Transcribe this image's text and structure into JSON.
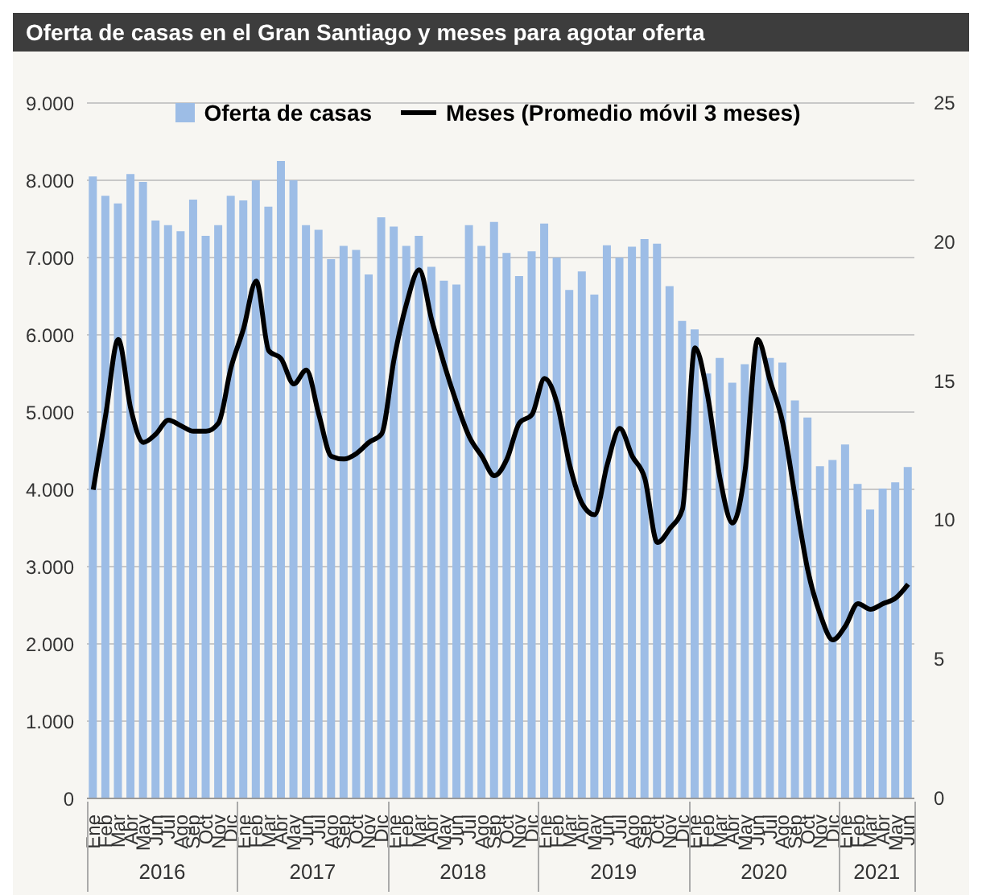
{
  "chart_data": {
    "type": "bar",
    "title": "Oferta de casas en el Gran Santiago y meses para agotar oferta",
    "categories": [
      "Ene",
      "Feb",
      "Mar",
      "Abr",
      "May",
      "Jun",
      "Jul",
      "Ago",
      "Sep",
      "Oct",
      "Nov",
      "Dic",
      "Ene",
      "Feb",
      "Mar",
      "Abr",
      "May",
      "Jun",
      "Jul",
      "Ago",
      "Sep",
      "Oct",
      "Nov",
      "Dic",
      "Ene",
      "Feb",
      "Mar",
      "Abr",
      "May",
      "Jun",
      "Jul",
      "Ago",
      "Sep",
      "Oct",
      "Nov",
      "Dic",
      "Ene",
      "Feb",
      "Mar",
      "Abr",
      "May",
      "Jun",
      "Jul",
      "Ago",
      "Sep",
      "Oct",
      "Nov",
      "Dic",
      "Ene",
      "Feb",
      "Mar",
      "Abr",
      "May",
      "Jun",
      "Jul",
      "Ago",
      "Sep",
      "Oct",
      "Nov",
      "Dic",
      "Ene",
      "Feb",
      "Mar",
      "Abr",
      "May",
      "Jun"
    ],
    "series": [
      {
        "name": "Oferta de casas",
        "color": "#9dbde6",
        "values": [
          8050,
          7800,
          7700,
          8080,
          7980,
          7480,
          7420,
          7340,
          7750,
          7280,
          7420,
          7800,
          7740,
          8000,
          7660,
          8250,
          8000,
          7420,
          7360,
          6980,
          7150,
          7100,
          6780,
          7520,
          7400,
          7150,
          7280,
          6880,
          6700,
          6650,
          7420,
          7150,
          7460,
          7060,
          6760,
          7080,
          7440,
          7000,
          6580,
          6820,
          6520,
          7160,
          7000,
          7140,
          7240,
          7180,
          6630,
          6180,
          6070,
          5500,
          5700,
          5380,
          5620,
          5850,
          5700,
          5640,
          5150,
          4930,
          4300,
          4380,
          4580,
          4070,
          3740,
          4010,
          4090,
          4290
        ]
      },
      {
        "name": "Meses (Promedio móvil 3 meses)",
        "type": "line",
        "axis": "y2",
        "color": "#000000",
        "values": [
          11.1,
          13.8,
          16.5,
          14.0,
          12.8,
          13.1,
          13.6,
          13.4,
          13.2,
          13.2,
          13.5,
          15.5,
          16.9,
          18.6,
          16.1,
          15.8,
          14.9,
          15.4,
          13.8,
          12.3,
          12.2,
          12.4,
          12.8,
          13.1,
          15.8,
          17.8,
          19.0,
          17.2,
          15.6,
          14.2,
          13.0,
          12.3,
          11.6,
          12.2,
          13.5,
          13.8,
          15.1,
          14.2,
          12.0,
          10.6,
          10.2,
          12.0,
          13.3,
          12.3,
          11.5,
          9.2,
          9.7,
          10.4,
          16.2,
          14.5,
          11.5,
          9.9,
          11.8,
          16.5,
          15.0,
          13.5,
          10.8,
          8.2,
          6.6,
          5.7,
          6.2,
          7.0,
          6.8,
          7.0,
          7.2,
          7.7
        ]
      }
    ],
    "ylim": [
      0,
      9000
    ],
    "yticks": [
      {
        "value": 0,
        "label": "0"
      },
      {
        "value": 1000,
        "label": "1.000"
      },
      {
        "value": 2000,
        "label": "2.000"
      },
      {
        "value": 3000,
        "label": "3.000"
      },
      {
        "value": 4000,
        "label": "4.000"
      },
      {
        "value": 5000,
        "label": "5.000"
      },
      {
        "value": 6000,
        "label": "6.000"
      },
      {
        "value": 7000,
        "label": "7.000"
      },
      {
        "value": 8000,
        "label": "8.000"
      },
      {
        "value": 9000,
        "label": "9.000"
      }
    ],
    "y2lim": [
      0,
      25
    ],
    "y2ticks": [
      0,
      5,
      10,
      15,
      20,
      25
    ],
    "annotations": [
      "2016",
      "2017",
      "2018",
      "2019",
      "2020",
      "2021"
    ],
    "grid": "y",
    "legend": "top",
    "marker": "none",
    "line_style": "solid"
  }
}
